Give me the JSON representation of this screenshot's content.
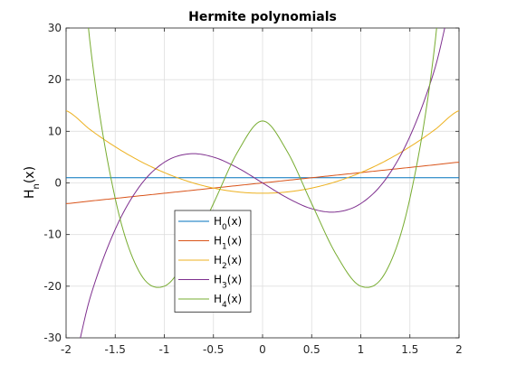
{
  "chart_data": {
    "type": "line",
    "title": "Hermite polynomials",
    "ylabel": "H",
    "ylabel_subscript": "n",
    "ylabel_suffix": "(x)",
    "xlim": [
      -2,
      2
    ],
    "ylim": [
      -30,
      30
    ],
    "xticks": [
      -2,
      -1.5,
      -1,
      -0.5,
      0,
      0.5,
      1,
      1.5,
      2
    ],
    "xtick_labels": [
      "-2",
      "-1.5",
      "-1",
      "-0.5",
      "0",
      "0.5",
      "1",
      "1.5",
      "2"
    ],
    "yticks": [
      -30,
      -20,
      -10,
      0,
      10,
      20,
      30
    ],
    "ytick_labels": [
      "-30",
      "-20",
      "-10",
      "0",
      "10",
      "20",
      "30"
    ],
    "grid": true,
    "legend_position": "lower-center",
    "x": [
      -2,
      -1.75,
      -1.5,
      -1.25,
      -1,
      -0.75,
      -0.5,
      -0.25,
      0,
      0.25,
      0.5,
      0.75,
      1,
      1.25,
      1.5,
      1.75,
      2
    ],
    "series": [
      {
        "name": "H",
        "subscript": "0",
        "suffix": "(x)",
        "color": "#0072BD",
        "values": [
          1,
          1,
          1,
          1,
          1,
          1,
          1,
          1,
          1,
          1,
          1,
          1,
          1,
          1,
          1,
          1,
          1
        ]
      },
      {
        "name": "H",
        "subscript": "1",
        "suffix": "(x)",
        "color": "#D95319",
        "values": [
          -4,
          -3.5,
          -3,
          -2.5,
          -2,
          -1.5,
          -1,
          -0.5,
          0,
          0.5,
          1,
          1.5,
          2,
          2.5,
          3,
          3.5,
          4
        ]
      },
      {
        "name": "H",
        "subscript": "2",
        "suffix": "(x)",
        "color": "#EDB120",
        "values": [
          14,
          10.25,
          7,
          4.25,
          2,
          0.25,
          -1,
          -1.75,
          -2,
          -1.75,
          -1,
          0.25,
          2,
          4.25,
          7,
          10.25,
          14
        ]
      },
      {
        "name": "H",
        "subscript": "3",
        "suffix": "(x)",
        "color": "#7E2F8E",
        "values": [
          -40,
          -21.875,
          -9,
          -0.625,
          4,
          5.625,
          5,
          2.875,
          0,
          -2.875,
          -5,
          -5.625,
          -4,
          0.625,
          9,
          21.875,
          40
        ]
      },
      {
        "name": "H",
        "subscript": "4",
        "suffix": "(x)",
        "color": "#77AC30",
        "values": [
          76,
          26.125,
          -3,
          -17.375,
          -20,
          -13.875,
          -4,
          6.125,
          12,
          6.125,
          -4,
          -13.875,
          -20,
          -17.375,
          -3,
          26.125,
          76
        ]
      }
    ]
  }
}
